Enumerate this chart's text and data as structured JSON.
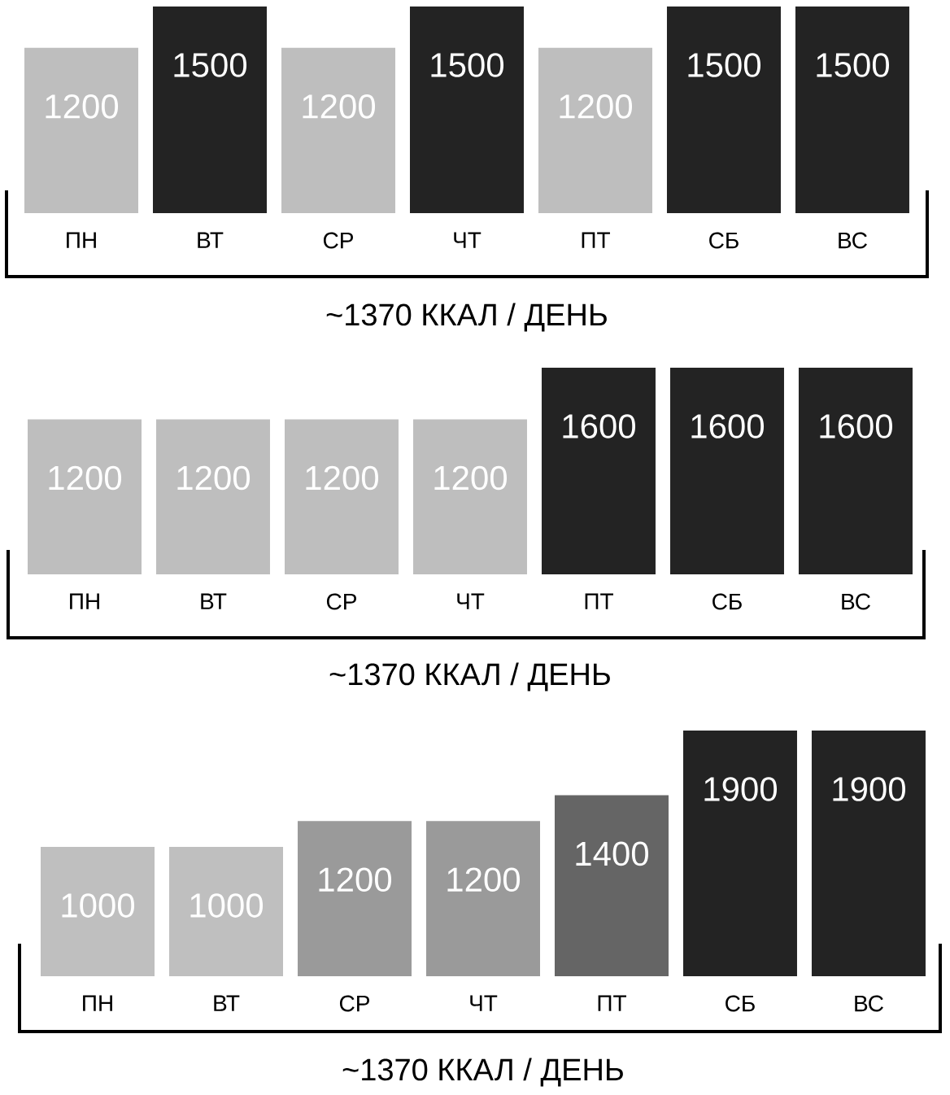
{
  "chart_data": [
    {
      "type": "bar",
      "categories": [
        "ПН",
        "ВТ",
        "СР",
        "ЧТ",
        "ПТ",
        "СБ",
        "ВС"
      ],
      "values": [
        1200,
        1500,
        1200,
        1500,
        1200,
        1500,
        1500
      ],
      "colors": [
        "#bebebe",
        "#232323",
        "#bebebe",
        "#232323",
        "#bebebe",
        "#232323",
        "#232323"
      ],
      "ylim": [
        0,
        1500
      ],
      "data_labels": true,
      "xlabel": "~1370 ККАЛ / ДЕНЬ"
    },
    {
      "type": "bar",
      "categories": [
        "ПН",
        "ВТ",
        "СР",
        "ЧТ",
        "ПТ",
        "СБ",
        "ВС"
      ],
      "values": [
        1200,
        1200,
        1200,
        1200,
        1600,
        1600,
        1600
      ],
      "colors": [
        "#bebebe",
        "#bebebe",
        "#bebebe",
        "#bebebe",
        "#232323",
        "#232323",
        "#232323"
      ],
      "ylim": [
        0,
        1600
      ],
      "data_labels": true,
      "xlabel": "~1370 ККАЛ / ДЕНЬ"
    },
    {
      "type": "bar",
      "categories": [
        "ПН",
        "ВТ",
        "СР",
        "ЧТ",
        "ПТ",
        "СБ",
        "ВС"
      ],
      "values": [
        1000,
        1000,
        1200,
        1200,
        1400,
        1900,
        1900
      ],
      "colors": [
        "#bfbfbf",
        "#bfbfbf",
        "#9a9a9a",
        "#9a9a9a",
        "#656565",
        "#232323",
        "#232323"
      ],
      "ylim": [
        0,
        1900
      ],
      "data_labels": true,
      "xlabel": "~1370 ККАЛ / ДЕНЬ"
    }
  ]
}
